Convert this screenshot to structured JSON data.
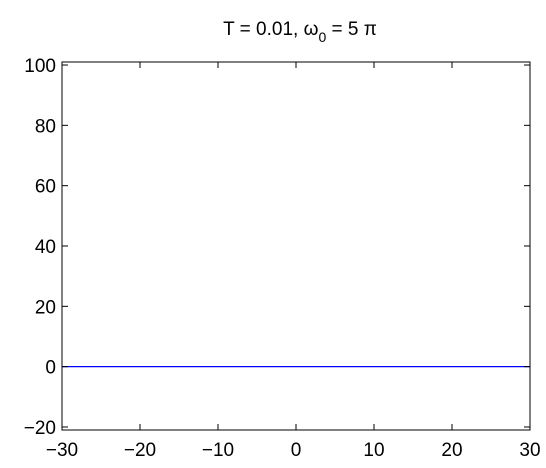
{
  "chart_data": {
    "type": "line",
    "title": {
      "main": "T = 0.01, ω",
      "subscript": "0",
      "suffix": " = 5 π"
    },
    "xlabel": "",
    "ylabel": "",
    "xlim": [
      -30,
      30
    ],
    "ylim": [
      -21,
      101
    ],
    "xticks": [
      -30,
      -20,
      -10,
      0,
      10,
      20,
      30
    ],
    "xtick_labels": [
      "−30",
      "−20",
      "−10",
      "0",
      "10",
      "20",
      "30"
    ],
    "yticks": [
      -20,
      0,
      20,
      40,
      60,
      80,
      100
    ],
    "ytick_labels": [
      "−20",
      "0",
      "20",
      "40",
      "60",
      "80",
      "100"
    ],
    "grid": false,
    "series": [
      {
        "x": [
          -30,
          30
        ],
        "y": [
          0,
          0
        ],
        "color": "#0000ff"
      }
    ]
  }
}
